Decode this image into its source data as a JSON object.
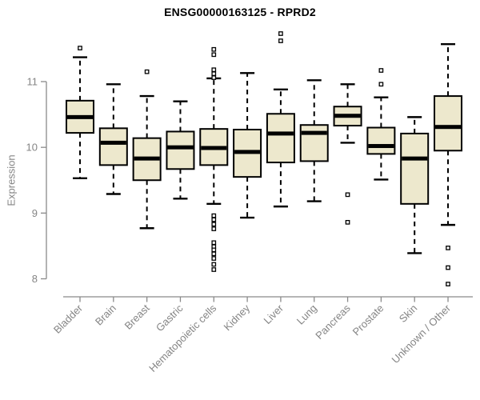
{
  "title": "ENSG00000163125 - RPRD2",
  "colors": {
    "box_fill": "#EDE8CD",
    "box_border": "#000000",
    "median": "#000000",
    "whisker": "#000000",
    "axis": "#8a8a8a",
    "tick_label": "#858585",
    "title": "#000000",
    "background": "#ffffff"
  },
  "chart_data": {
    "type": "boxplot",
    "title": "ENSG00000163125 - RPRD2",
    "xlabel": "",
    "ylabel": "Expression",
    "ylim": [
      7.8,
      11.8
    ],
    "y_ticks": [
      8,
      9,
      10,
      11
    ],
    "grid": false,
    "legend": "none",
    "categories": [
      "Bladder",
      "Brain",
      "Breast",
      "Gastric",
      "Hematopoietic cells",
      "Kidney",
      "Liver",
      "Lung",
      "Pancreas",
      "Prostate",
      "Skin",
      "Unknown / Other"
    ],
    "series": [
      {
        "category": "Bladder",
        "whisker_low": 9.53,
        "q1": 10.22,
        "median": 10.46,
        "q3": 10.71,
        "whisker_high": 11.37,
        "outliers": [
          11.51
        ]
      },
      {
        "category": "Brain",
        "whisker_low": 9.29,
        "q1": 9.73,
        "median": 10.07,
        "q3": 10.29,
        "whisker_high": 10.96,
        "outliers": []
      },
      {
        "category": "Breast",
        "whisker_low": 8.77,
        "q1": 9.5,
        "median": 9.83,
        "q3": 10.14,
        "whisker_high": 10.78,
        "outliers": [
          11.15
        ]
      },
      {
        "category": "Gastric",
        "whisker_low": 9.22,
        "q1": 9.67,
        "median": 10.0,
        "q3": 10.24,
        "whisker_high": 10.7,
        "outliers": []
      },
      {
        "category": "Hematopoietic cells",
        "whisker_low": 9.14,
        "q1": 9.73,
        "median": 9.99,
        "q3": 10.28,
        "whisker_high": 11.05,
        "outliers": [
          11.49,
          11.41,
          11.18,
          11.12,
          11.06,
          8.96,
          8.9,
          8.83,
          8.76,
          8.55,
          8.49,
          8.44,
          8.38,
          8.31,
          8.22,
          8.14
        ]
      },
      {
        "category": "Kidney",
        "whisker_low": 8.93,
        "q1": 9.55,
        "median": 9.93,
        "q3": 10.27,
        "whisker_high": 11.13,
        "outliers": []
      },
      {
        "category": "Liver",
        "whisker_low": 9.1,
        "q1": 9.77,
        "median": 10.21,
        "q3": 10.51,
        "whisker_high": 10.88,
        "outliers": [
          11.73,
          11.62
        ]
      },
      {
        "category": "Lung",
        "whisker_low": 9.18,
        "q1": 9.79,
        "median": 10.22,
        "q3": 10.34,
        "whisker_high": 11.02,
        "outliers": []
      },
      {
        "category": "Pancreas",
        "whisker_low": 10.07,
        "q1": 10.33,
        "median": 10.48,
        "q3": 10.62,
        "whisker_high": 10.96,
        "outliers": [
          9.28,
          8.86
        ]
      },
      {
        "category": "Prostate",
        "whisker_low": 9.51,
        "q1": 9.9,
        "median": 10.02,
        "q3": 10.3,
        "whisker_high": 10.76,
        "outliers": [
          11.17,
          10.96
        ]
      },
      {
        "category": "Skin",
        "whisker_low": 8.39,
        "q1": 9.14,
        "median": 9.83,
        "q3": 10.21,
        "whisker_high": 10.46,
        "outliers": []
      },
      {
        "category": "Unknown / Other",
        "whisker_low": 8.82,
        "q1": 9.95,
        "median": 10.31,
        "q3": 10.78,
        "whisker_high": 11.57,
        "outliers": [
          8.47,
          8.17,
          7.92
        ]
      }
    ]
  }
}
